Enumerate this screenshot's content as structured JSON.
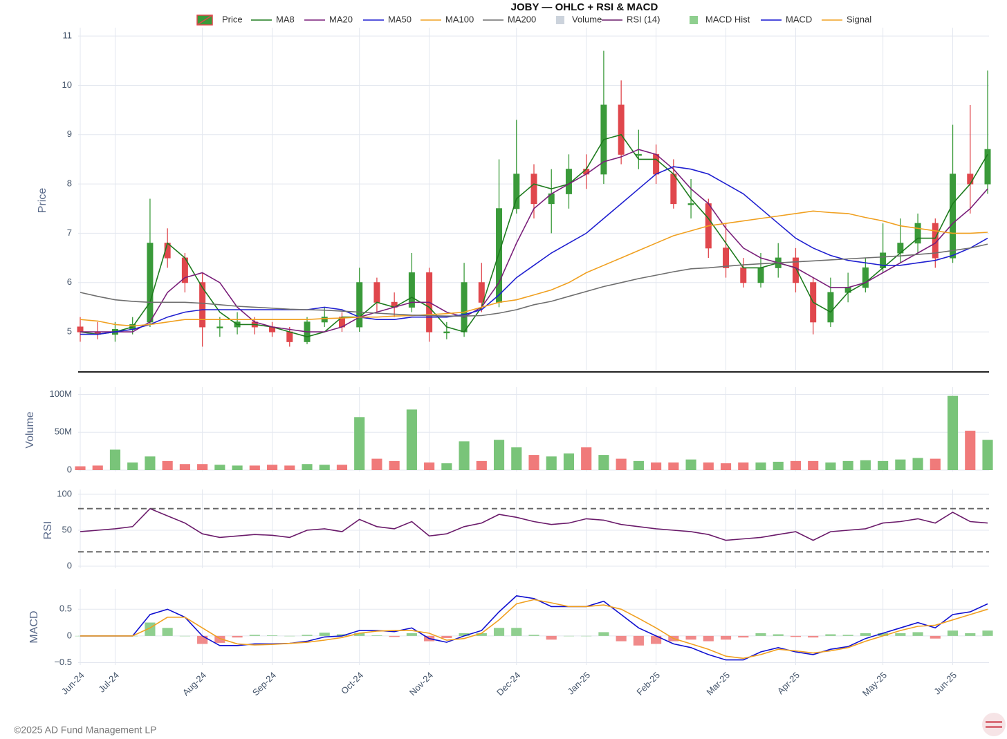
{
  "title": "JOBY — OHLC + RSI & MACD",
  "footer": "©2025 AD Fund Management LP",
  "chart_data": [
    {
      "type": "candlestick",
      "y_label": "Price",
      "ylim": [
        4.3,
        11.1
      ],
      "yticks": [
        5,
        6,
        7,
        8,
        9,
        10,
        11
      ],
      "grid": true,
      "series": [
        {
          "name": "Price",
          "up_color": "#3a9a3a",
          "down_color": "#e0474c",
          "open": [
            5.1,
            5.0,
            4.95,
            5.05,
            5.2,
            6.8,
            6.5,
            6.0,
            5.1,
            5.1,
            5.2,
            5.1,
            5.0,
            4.8,
            5.2,
            5.3,
            5.1,
            6.0,
            5.6,
            5.5,
            6.2,
            5.0,
            5.0,
            6.0,
            5.6,
            7.5,
            8.2,
            7.6,
            7.8,
            8.3,
            8.2,
            9.6,
            8.6,
            8.6,
            8.2,
            7.6,
            7.6,
            6.7,
            6.3,
            6.0,
            6.3,
            6.5,
            6.0,
            5.2,
            5.8,
            5.9,
            6.3,
            6.6,
            6.8,
            7.2,
            6.5,
            8.2,
            8.0
          ],
          "high": [
            5.3,
            5.2,
            5.2,
            5.3,
            7.7,
            7.1,
            6.6,
            6.2,
            5.3,
            5.4,
            5.3,
            5.2,
            5.1,
            5.3,
            5.5,
            5.4,
            6.3,
            6.1,
            5.8,
            6.6,
            6.3,
            5.2,
            6.4,
            6.4,
            8.5,
            9.3,
            8.4,
            8.3,
            8.6,
            8.6,
            10.7,
            10.1,
            9.1,
            8.8,
            8.5,
            8.1,
            7.7,
            7.2,
            6.5,
            6.6,
            6.8,
            6.7,
            6.1,
            6.1,
            6.2,
            6.5,
            7.2,
            7.3,
            7.4,
            7.3,
            9.2,
            9.6,
            10.3
          ],
          "low": [
            4.8,
            4.85,
            4.8,
            4.95,
            5.1,
            6.3,
            5.8,
            4.7,
            4.9,
            4.95,
            4.95,
            4.9,
            4.7,
            4.75,
            5.1,
            5.0,
            5.0,
            5.4,
            5.3,
            5.4,
            4.8,
            4.85,
            4.9,
            5.4,
            5.5,
            7.4,
            7.3,
            7.0,
            7.5,
            7.9,
            8.0,
            8.4,
            8.3,
            8.0,
            7.5,
            7.3,
            6.5,
            6.1,
            5.9,
            5.9,
            6.1,
            5.8,
            4.95,
            5.1,
            5.6,
            5.8,
            6.2,
            6.4,
            6.6,
            6.3,
            6.4,
            7.4,
            7.8
          ],
          "close": [
            5.0,
            4.95,
            5.05,
            5.15,
            6.8,
            6.5,
            6.0,
            5.1,
            5.1,
            5.2,
            5.1,
            5.0,
            4.8,
            5.2,
            5.3,
            5.1,
            6.0,
            5.6,
            5.5,
            6.2,
            5.0,
            5.0,
            6.0,
            5.6,
            7.5,
            8.2,
            7.6,
            7.8,
            8.3,
            8.2,
            9.6,
            8.6,
            8.6,
            8.2,
            7.6,
            7.6,
            6.7,
            6.3,
            6.0,
            6.3,
            6.5,
            6.0,
            5.2,
            5.8,
            5.9,
            6.3,
            6.6,
            6.8,
            7.2,
            6.5,
            8.2,
            8.0,
            8.7
          ]
        },
        {
          "name": "MA8",
          "color": "#1e7b1e",
          "values": [
            5.0,
            4.95,
            5.0,
            5.1,
            5.6,
            6.8,
            6.5,
            5.9,
            5.4,
            5.15,
            5.15,
            5.1,
            5.0,
            4.9,
            5.0,
            5.3,
            5.3,
            5.6,
            5.5,
            5.7,
            5.5,
            5.1,
            5.0,
            5.5,
            6.6,
            7.7,
            8.0,
            7.9,
            8.0,
            8.3,
            8.9,
            9.0,
            8.5,
            8.5,
            8.2,
            7.7,
            7.3,
            6.8,
            6.3,
            6.3,
            6.4,
            6.3,
            5.6,
            5.4,
            5.8,
            6.0,
            6.3,
            6.6,
            6.9,
            6.9,
            7.6,
            8.0,
            8.6
          ]
        },
        {
          "name": "MA20",
          "color": "#7a1f7a",
          "values": [
            5.0,
            5.0,
            5.0,
            5.0,
            5.2,
            5.8,
            6.1,
            6.2,
            6.0,
            5.5,
            5.2,
            5.1,
            5.05,
            5.0,
            5.0,
            5.1,
            5.3,
            5.4,
            5.5,
            5.6,
            5.6,
            5.4,
            5.3,
            5.5,
            6.0,
            6.8,
            7.5,
            7.8,
            8.0,
            8.2,
            8.45,
            8.55,
            8.7,
            8.6,
            8.3,
            7.9,
            7.6,
            7.1,
            6.7,
            6.5,
            6.4,
            6.3,
            6.1,
            5.9,
            5.9,
            6.0,
            6.2,
            6.4,
            6.6,
            6.8,
            7.2,
            7.5,
            7.9
          ]
        },
        {
          "name": "MA50",
          "color": "#1f1fd0",
          "values": [
            4.95,
            4.95,
            5.0,
            5.05,
            5.15,
            5.3,
            5.4,
            5.45,
            5.45,
            5.45,
            5.45,
            5.45,
            5.45,
            5.45,
            5.5,
            5.45,
            5.3,
            5.25,
            5.25,
            5.3,
            5.3,
            5.3,
            5.35,
            5.45,
            5.75,
            6.1,
            6.35,
            6.6,
            6.8,
            7.0,
            7.3,
            7.6,
            7.9,
            8.2,
            8.35,
            8.3,
            8.2,
            8.0,
            7.8,
            7.5,
            7.2,
            6.9,
            6.7,
            6.55,
            6.45,
            6.4,
            6.35,
            6.35,
            6.4,
            6.45,
            6.55,
            6.7,
            6.9
          ]
        },
        {
          "name": "MA100",
          "color": "#f0a020",
          "values": [
            5.25,
            5.22,
            5.15,
            5.12,
            5.15,
            5.2,
            5.25,
            5.25,
            5.25,
            5.25,
            5.25,
            5.25,
            5.25,
            5.25,
            5.27,
            5.28,
            5.3,
            5.3,
            5.32,
            5.33,
            5.35,
            5.37,
            5.4,
            5.5,
            5.6,
            5.65,
            5.75,
            5.85,
            6.0,
            6.2,
            6.35,
            6.5,
            6.65,
            6.8,
            6.95,
            7.05,
            7.15,
            7.2,
            7.25,
            7.3,
            7.35,
            7.4,
            7.45,
            7.42,
            7.4,
            7.32,
            7.25,
            7.15,
            7.1,
            7.05,
            7.0,
            7.0,
            7.02
          ]
        },
        {
          "name": "MA200",
          "color": "#6e6e6e",
          "values": [
            5.8,
            5.72,
            5.65,
            5.62,
            5.6,
            5.6,
            5.6,
            5.58,
            5.55,
            5.52,
            5.5,
            5.48,
            5.46,
            5.45,
            5.44,
            5.42,
            5.4,
            5.38,
            5.36,
            5.34,
            5.33,
            5.32,
            5.32,
            5.33,
            5.38,
            5.45,
            5.55,
            5.62,
            5.72,
            5.82,
            5.92,
            6.0,
            6.08,
            6.15,
            6.22,
            6.28,
            6.3,
            6.33,
            6.36,
            6.38,
            6.4,
            6.42,
            6.44,
            6.46,
            6.48,
            6.5,
            6.52,
            6.54,
            6.57,
            6.6,
            6.65,
            6.7,
            6.78
          ]
        }
      ]
    },
    {
      "type": "bar",
      "y_label": "Volume",
      "ylim": [
        0,
        105
      ],
      "yticks": [
        {
          "value": 0,
          "label": "0"
        },
        {
          "value": 50,
          "label": "50M"
        },
        {
          "value": 100,
          "label": "100M"
        }
      ],
      "grid": true,
      "series": [
        {
          "name": "Volume",
          "color": "#ccd3dc",
          "up_color": "#79c479",
          "down_color": "#f07a7a",
          "values": [
            5,
            6,
            27,
            10,
            18,
            12,
            8,
            8,
            7,
            6,
            6,
            7,
            6,
            8,
            7,
            7,
            70,
            15,
            12,
            80,
            10,
            9,
            38,
            12,
            40,
            30,
            20,
            18,
            22,
            30,
            20,
            15,
            12,
            10,
            10,
            14,
            10,
            9,
            10,
            10,
            11,
            12,
            12,
            10,
            12,
            13,
            12,
            14,
            16,
            15,
            98,
            52,
            40
          ]
        }
      ]
    },
    {
      "type": "line",
      "y_label": "RSI",
      "ylim": [
        0,
        100
      ],
      "yticks": [
        0,
        50,
        100
      ],
      "grid": true,
      "hlines": [
        80,
        20
      ],
      "series": [
        {
          "name": "RSI (14)",
          "color": "#6a1a6a",
          "values": [
            48,
            50,
            52,
            55,
            80,
            70,
            60,
            45,
            40,
            42,
            44,
            43,
            40,
            50,
            52,
            48,
            65,
            55,
            52,
            62,
            42,
            45,
            55,
            60,
            72,
            68,
            62,
            58,
            60,
            66,
            64,
            58,
            55,
            52,
            50,
            48,
            44,
            36,
            38,
            40,
            44,
            48,
            36,
            48,
            50,
            52,
            60,
            62,
            66,
            60,
            75,
            62,
            60
          ]
        }
      ]
    },
    {
      "type": "line",
      "y_label": "MACD",
      "ylim": [
        -0.52,
        0.84
      ],
      "yticks": [
        {
          "value": -0.5,
          "label": "−0.5"
        },
        0,
        0.5
      ],
      "grid": true,
      "categories": [
        "Jun-24",
        null,
        "Jul-24",
        null,
        null,
        null,
        null,
        "Aug-24",
        null,
        null,
        null,
        "Sep-24",
        null,
        null,
        null,
        null,
        "Oct-24",
        null,
        null,
        null,
        "Nov-24",
        null,
        null,
        null,
        null,
        "Dec-24",
        null,
        null,
        null,
        "Jan-25",
        null,
        null,
        null,
        "Feb-25",
        null,
        null,
        null,
        "Mar-25",
        null,
        null,
        null,
        "Apr-25",
        null,
        null,
        null,
        null,
        "May-25",
        null,
        null,
        null,
        "Jun-25",
        null,
        null
      ],
      "series": [
        {
          "name": "MACD Hist",
          "kind": "bar",
          "color": "#8fcf8f",
          "down_color": "#f08a8a",
          "values": [
            0,
            0,
            0,
            0,
            0.25,
            0.15,
            0,
            -0.15,
            -0.13,
            -0.03,
            0.02,
            0.01,
            0,
            0.02,
            0.06,
            0.03,
            0.05,
            0.01,
            -0.02,
            0.05,
            -0.1,
            -0.04,
            0.05,
            0.05,
            0.15,
            0.15,
            0.02,
            -0.07,
            0,
            0,
            0.07,
            -0.1,
            -0.18,
            -0.15,
            -0.1,
            -0.07,
            -0.1,
            -0.07,
            -0.03,
            0.05,
            0.03,
            -0.02,
            -0.03,
            0.03,
            0.02,
            0.05,
            0.05,
            0.05,
            0.07,
            -0.05,
            0.1,
            0.05,
            0.1
          ]
        },
        {
          "name": "MACD",
          "color": "#1010d0",
          "values": [
            0,
            0,
            0,
            0,
            0.4,
            0.5,
            0.35,
            0,
            -0.18,
            -0.18,
            -0.15,
            -0.15,
            -0.14,
            -0.1,
            -0.02,
            0.0,
            0.1,
            0.1,
            0.08,
            0.15,
            -0.05,
            -0.12,
            0.0,
            0.1,
            0.45,
            0.75,
            0.7,
            0.55,
            0.55,
            0.55,
            0.65,
            0.4,
            0.15,
            0.0,
            -0.15,
            -0.22,
            -0.35,
            -0.45,
            -0.45,
            -0.3,
            -0.22,
            -0.3,
            -0.35,
            -0.25,
            -0.2,
            -0.05,
            0.05,
            0.15,
            0.25,
            0.15,
            0.4,
            0.45,
            0.6
          ]
        },
        {
          "name": "Signal",
          "color": "#f0a020",
          "values": [
            0,
            0,
            0,
            0,
            0.15,
            0.35,
            0.35,
            0.15,
            -0.05,
            -0.15,
            -0.17,
            -0.16,
            -0.14,
            -0.12,
            -0.08,
            -0.03,
            0.05,
            0.09,
            0.1,
            0.1,
            0.05,
            -0.08,
            -0.05,
            0.05,
            0.3,
            0.6,
            0.68,
            0.62,
            0.55,
            0.55,
            0.58,
            0.5,
            0.33,
            0.15,
            -0.05,
            -0.15,
            -0.25,
            -0.38,
            -0.42,
            -0.35,
            -0.25,
            -0.28,
            -0.32,
            -0.28,
            -0.22,
            -0.1,
            0.0,
            0.1,
            0.18,
            0.2,
            0.3,
            0.4,
            0.5
          ]
        }
      ]
    }
  ]
}
